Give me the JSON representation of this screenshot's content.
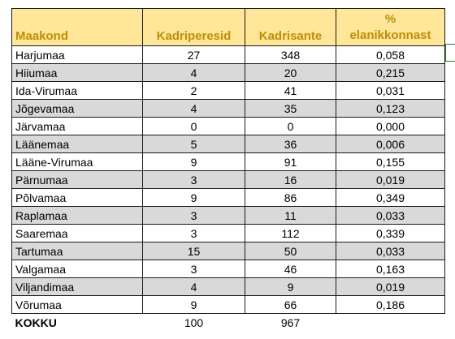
{
  "header": {
    "name": "Maakond",
    "col1": "Kadriperesid",
    "col2": "Kadrisante",
    "col3_symbol": "%",
    "col3_label": "elanikkonnast"
  },
  "rows": [
    {
      "name": "Harjumaa",
      "perekonnad": "27",
      "sante": "348",
      "pct": "0,058"
    },
    {
      "name": "Hiiumaa",
      "perekonnad": "4",
      "sante": "20",
      "pct": "0,215"
    },
    {
      "name": "Ida-Virumaa",
      "perekonnad": "2",
      "sante": "41",
      "pct": "0,031"
    },
    {
      "name": "Jõgevamaa",
      "perekonnad": "4",
      "sante": "35",
      "pct": "0,123"
    },
    {
      "name": "Järvamaa",
      "perekonnad": "0",
      "sante": "0",
      "pct": "0,000"
    },
    {
      "name": "Läänemaa",
      "perekonnad": "5",
      "sante": "36",
      "pct": "0,006"
    },
    {
      "name": "Lääne-Virumaa",
      "perekonnad": "9",
      "sante": "91",
      "pct": "0,155"
    },
    {
      "name": "Pärnumaa",
      "perekonnad": "3",
      "sante": "16",
      "pct": "0,019"
    },
    {
      "name": "Põlvamaa",
      "perekonnad": "9",
      "sante": "86",
      "pct": "0,349"
    },
    {
      "name": "Raplamaa",
      "perekonnad": "3",
      "sante": "11",
      "pct": "0,033"
    },
    {
      "name": "Saaremaa",
      "perekonnad": "3",
      "sante": "112",
      "pct": "0,339"
    },
    {
      "name": "Tartumaa",
      "perekonnad": "15",
      "sante": "50",
      "pct": "0,033"
    },
    {
      "name": "Valgamaa",
      "perekonnad": "3",
      "sante": "46",
      "pct": "0,163"
    },
    {
      "name": "Viljandimaa",
      "perekonnad": "4",
      "sante": "9",
      "pct": "0,019"
    },
    {
      "name": "Võrumaa",
      "perekonnad": "9",
      "sante": "66",
      "pct": "0,186"
    }
  ],
  "total": {
    "name": "KOKKU",
    "perekonnad": "100",
    "sante": "967"
  },
  "colors": {
    "header_fill": "#ffe699",
    "header_text": "#bf8f00",
    "stripe_fill": "#d9d9d9",
    "selection_border": "#2e7d32"
  }
}
